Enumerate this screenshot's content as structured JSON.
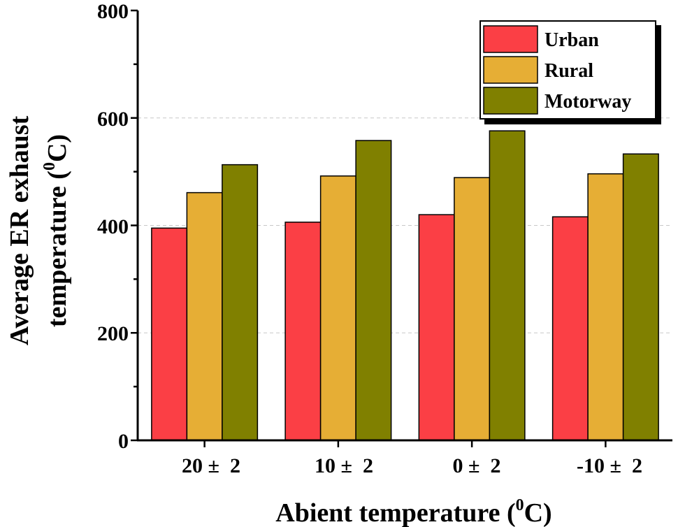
{
  "chart_data": {
    "type": "bar",
    "categories": [
      "20 ±  2",
      "10 ±  2",
      "0 ±  2",
      "-10 ±  2"
    ],
    "series": [
      {
        "name": "Urban",
        "color": "#fb3f45",
        "values": [
          395,
          406,
          420,
          416
        ]
      },
      {
        "name": "Rural",
        "color": "#e6ae35",
        "values": [
          461,
          492,
          489,
          496
        ]
      },
      {
        "name": "Motorway",
        "color": "#808000",
        "values": [
          513,
          558,
          576,
          533
        ]
      }
    ],
    "xlabel": {
      "text": "Abient temperature (",
      "sup": "0",
      "tail": "C)"
    },
    "ylabel": {
      "line1": "Average ER exhaust",
      "line2": "temperature (",
      "sup": "0",
      "tail": "C)"
    },
    "ylim": [
      0,
      800
    ],
    "yticks": [
      "0",
      "200",
      "400",
      "600",
      "800"
    ],
    "grid": "horizontal-dashed",
    "legend_position": "top-right"
  }
}
